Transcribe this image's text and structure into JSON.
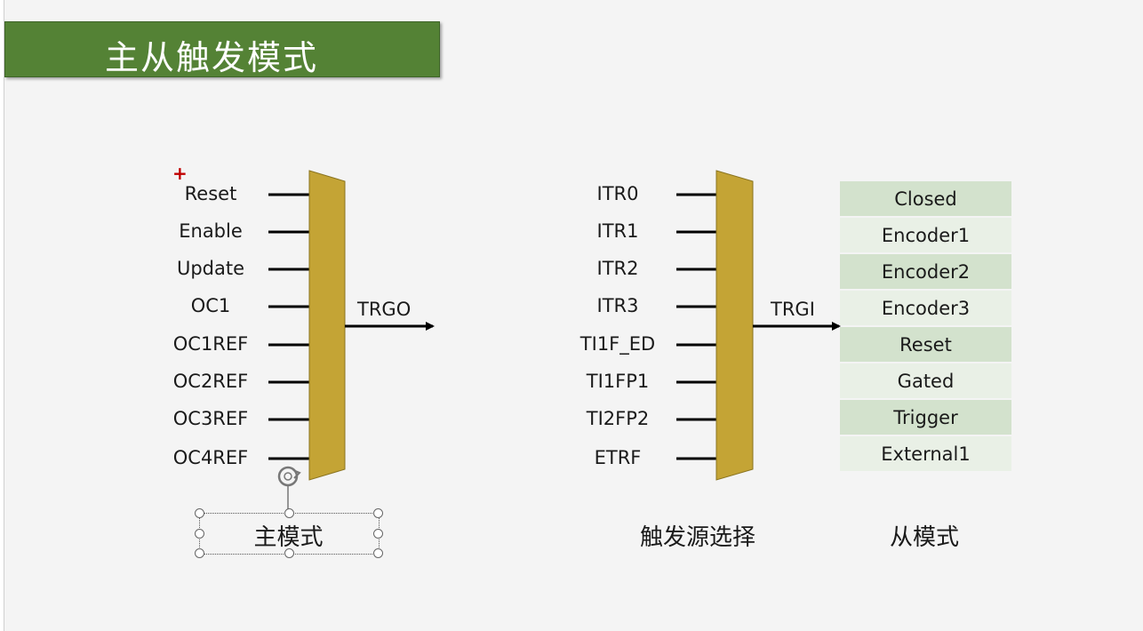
{
  "title": "主从触发模式",
  "master": {
    "inputs": [
      "Reset",
      "Enable",
      "Update",
      "OC1",
      "OC1REF",
      "OC2REF",
      "OC3REF",
      "OC4REF"
    ],
    "output": "TRGO",
    "caption": "主模式"
  },
  "trigger_select": {
    "inputs": [
      "ITR0",
      "ITR1",
      "ITR2",
      "ITR3",
      "TI1F_ED",
      "TI1FP1",
      "TI2FP2",
      "ETRF"
    ],
    "output": "TRGI",
    "caption": "触发源选择"
  },
  "slave": {
    "modes": [
      "Closed",
      "Encoder1",
      "Encoder2",
      "Encoder3",
      "Reset",
      "Gated",
      "Trigger",
      "External1"
    ],
    "caption": "从模式"
  },
  "colors": {
    "title_bg": "#548235",
    "mux_fill": "#c4a435",
    "table_dark": "#d3e2cd",
    "table_light": "#e9f0e6"
  },
  "icons": [
    "rotate-handle-icon",
    "plus-cursor-icon"
  ]
}
